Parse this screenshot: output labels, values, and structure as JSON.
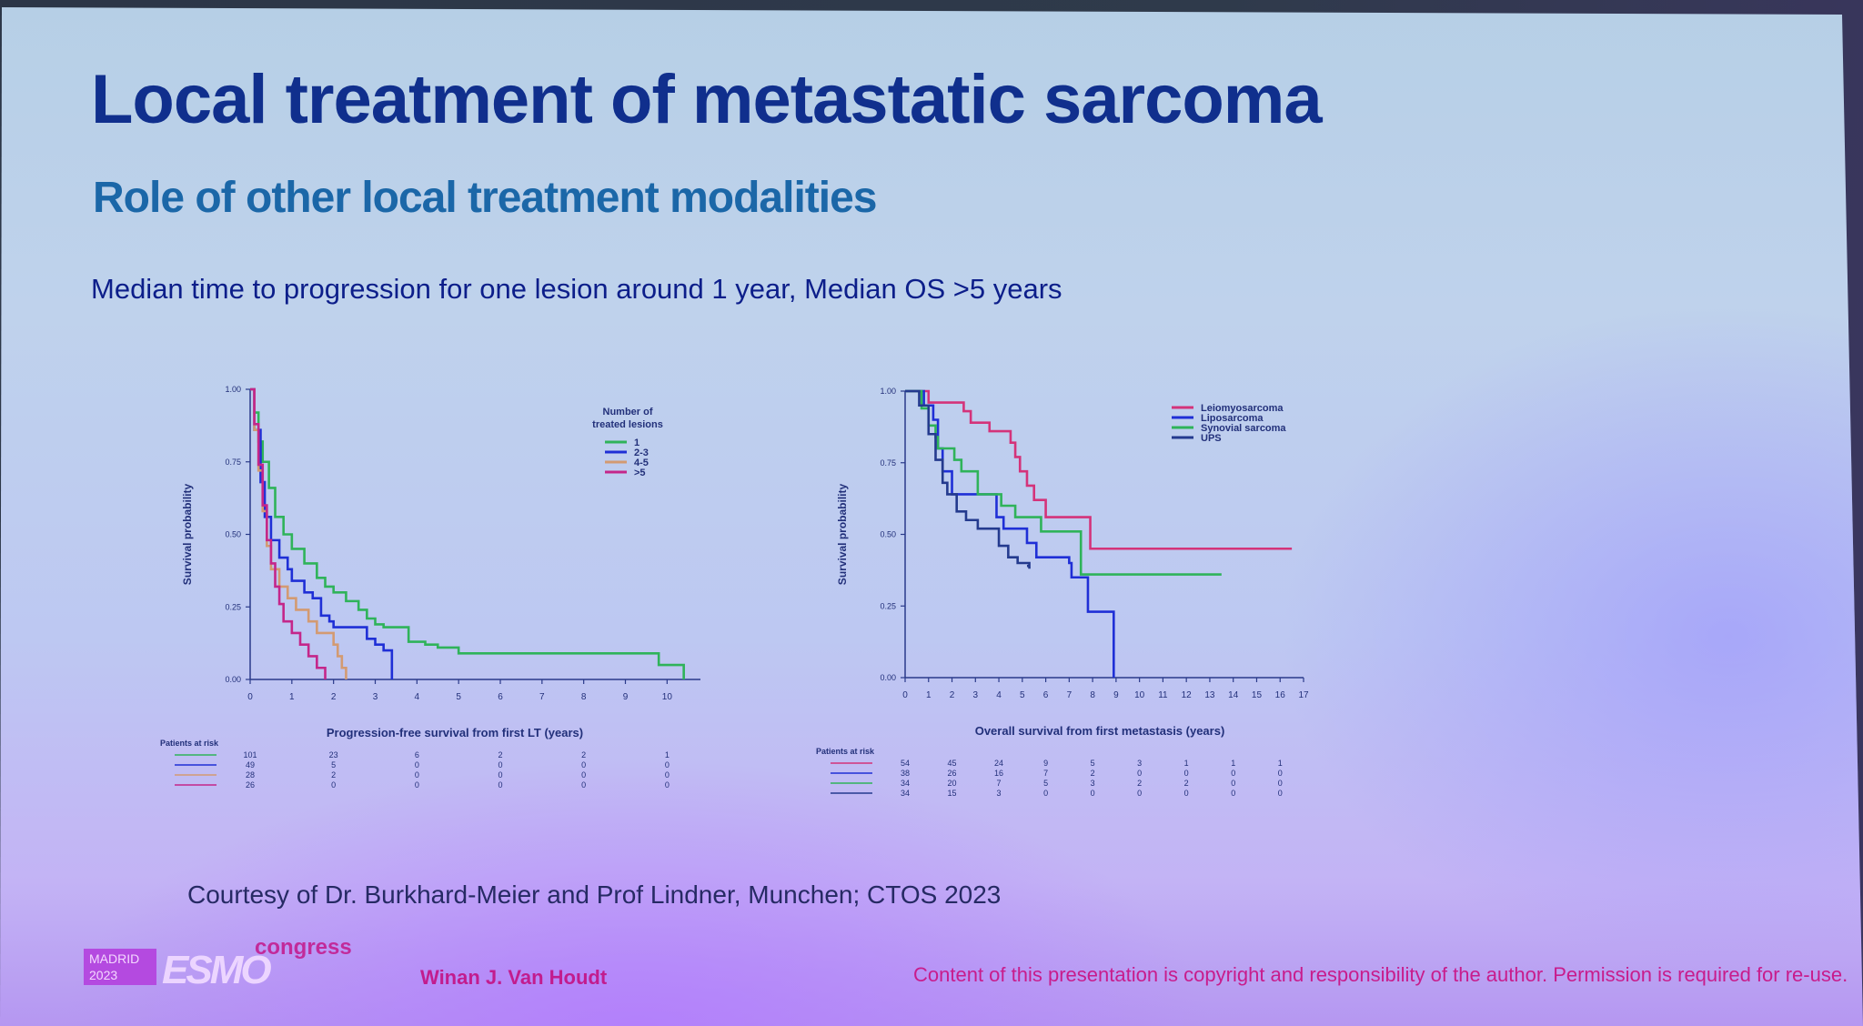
{
  "slide": {
    "title": "Local treatment of metastatic sarcoma",
    "subtitle": "Role of other local treatment modalities",
    "headline": "Median time to progression for one lesion around 1 year, Median OS >5 years",
    "courtesy": "Courtesy of Dr. Burkhard-Meier and Prof Lindner, Munchen; CTOS 2023"
  },
  "footer": {
    "author": "Winan J. Van Houdt",
    "copyright": "Content of this presentation is copyright and responsibility of the author. Permission is required for re-use.",
    "logo_city": "MADRID",
    "logo_year": "2023",
    "logo_brand": "ESMO",
    "logo_suffix": "congress"
  },
  "colors": {
    "title": "#102f8d",
    "subtitle": "#1b67a8",
    "green": "#2fb35a",
    "blue": "#1f2fd6",
    "orange": "#d39a72",
    "magenta": "#c4268a",
    "navy": "#243a8e",
    "pink": "#d4337a"
  },
  "chart_data": [
    {
      "type": "line",
      "step": true,
      "ylabel": "Survival probability",
      "xlabel": "Progression-free survival from first LT (years)",
      "xlim": [
        0,
        10.8
      ],
      "ylim": [
        0,
        1
      ],
      "x_ticks": [
        "0",
        "1",
        "2",
        "3",
        "4",
        "5",
        "6",
        "7",
        "8",
        "9",
        "10"
      ],
      "y_ticks": [
        "0.00",
        "0.25",
        "0.50",
        "0.75",
        "1.00"
      ],
      "legend_title": "Number of treated lesions",
      "legend_position": "top-right",
      "series": [
        {
          "name": "1",
          "color": "#2fb35a",
          "points": [
            [
              0,
              1
            ],
            [
              0.1,
              0.92
            ],
            [
              0.2,
              0.82
            ],
            [
              0.3,
              0.75
            ],
            [
              0.45,
              0.66
            ],
            [
              0.6,
              0.56
            ],
            [
              0.8,
              0.5
            ],
            [
              1.0,
              0.45
            ],
            [
              1.3,
              0.4
            ],
            [
              1.6,
              0.35
            ],
            [
              1.8,
              0.32
            ],
            [
              2.0,
              0.3
            ],
            [
              2.3,
              0.27
            ],
            [
              2.6,
              0.24
            ],
            [
              2.8,
              0.21
            ],
            [
              3.0,
              0.19
            ],
            [
              3.2,
              0.18
            ],
            [
              3.8,
              0.13
            ],
            [
              4.2,
              0.12
            ],
            [
              4.5,
              0.11
            ],
            [
              5.0,
              0.09
            ],
            [
              9.8,
              0.09
            ],
            [
              9.8,
              0.05
            ],
            [
              10.4,
              0.05
            ],
            [
              10.4,
              0.0
            ]
          ]
        },
        {
          "name": "2-3",
          "color": "#1f2fd6",
          "points": [
            [
              0,
              1
            ],
            [
              0.1,
              0.86
            ],
            [
              0.25,
              0.68
            ],
            [
              0.35,
              0.56
            ],
            [
              0.5,
              0.48
            ],
            [
              0.7,
              0.42
            ],
            [
              0.9,
              0.38
            ],
            [
              1.0,
              0.34
            ],
            [
              1.3,
              0.3
            ],
            [
              1.5,
              0.28
            ],
            [
              1.7,
              0.22
            ],
            [
              1.9,
              0.2
            ],
            [
              2.0,
              0.18
            ],
            [
              2.8,
              0.18
            ],
            [
              2.8,
              0.14
            ],
            [
              3.0,
              0.12
            ],
            [
              3.2,
              0.1
            ],
            [
              3.4,
              0.07
            ],
            [
              3.4,
              0.0
            ]
          ]
        },
        {
          "name": "4-5",
          "color": "#d39a72",
          "points": [
            [
              0,
              1
            ],
            [
              0.1,
              0.86
            ],
            [
              0.2,
              0.72
            ],
            [
              0.3,
              0.58
            ],
            [
              0.4,
              0.46
            ],
            [
              0.5,
              0.38
            ],
            [
              0.7,
              0.32
            ],
            [
              0.9,
              0.28
            ],
            [
              1.1,
              0.24
            ],
            [
              1.4,
              0.2
            ],
            [
              1.6,
              0.16
            ],
            [
              2.0,
              0.12
            ],
            [
              2.1,
              0.08
            ],
            [
              2.2,
              0.04
            ],
            [
              2.3,
              0.0
            ]
          ]
        },
        {
          "name": ">5",
          "color": "#c4268a",
          "points": [
            [
              0,
              1
            ],
            [
              0.1,
              0.88
            ],
            [
              0.2,
              0.74
            ],
            [
              0.3,
              0.6
            ],
            [
              0.4,
              0.48
            ],
            [
              0.5,
              0.4
            ],
            [
              0.6,
              0.32
            ],
            [
              0.7,
              0.26
            ],
            [
              0.8,
              0.2
            ],
            [
              1.0,
              0.16
            ],
            [
              1.2,
              0.12
            ],
            [
              1.4,
              0.08
            ],
            [
              1.6,
              0.04
            ],
            [
              1.8,
              0.0
            ]
          ]
        }
      ],
      "risk_table": {
        "label": "Patients at risk",
        "x_positions": [
          0,
          2,
          4,
          6,
          8,
          10
        ],
        "rows": [
          {
            "color": "#2fb35a",
            "values": [
              "101",
              "23",
              "6",
              "2",
              "2",
              "1"
            ]
          },
          {
            "color": "#1f2fd6",
            "values": [
              "49",
              "5",
              "0",
              "0",
              "0",
              "0"
            ]
          },
          {
            "color": "#d39a72",
            "values": [
              "28",
              "2",
              "0",
              "0",
              "0",
              "0"
            ]
          },
          {
            "color": "#c4268a",
            "values": [
              "26",
              "0",
              "0",
              "0",
              "0",
              "0"
            ]
          }
        ]
      }
    },
    {
      "type": "line",
      "step": true,
      "ylabel": "Survival probability",
      "xlabel": "Overall survival from first metastasis (years)",
      "xlim": [
        0,
        17
      ],
      "ylim": [
        0,
        1
      ],
      "x_ticks": [
        "0",
        "1",
        "2",
        "3",
        "4",
        "5",
        "6",
        "7",
        "8",
        "9",
        "10",
        "11",
        "12",
        "13",
        "14",
        "15",
        "16",
        "17"
      ],
      "y_ticks": [
        "0.00",
        "0.25",
        "0.50",
        "0.75",
        "1.00"
      ],
      "legend_position": "top-right",
      "series": [
        {
          "name": "Leiomyosarcoma",
          "color": "#d4337a",
          "points": [
            [
              0,
              1
            ],
            [
              1.0,
              1
            ],
            [
              1.0,
              0.96
            ],
            [
              2.5,
              0.96
            ],
            [
              2.5,
              0.93
            ],
            [
              2.8,
              0.89
            ],
            [
              3.6,
              0.86
            ],
            [
              4.5,
              0.82
            ],
            [
              4.7,
              0.77
            ],
            [
              4.9,
              0.72
            ],
            [
              5.2,
              0.67
            ],
            [
              5.5,
              0.62
            ],
            [
              6.0,
              0.56
            ],
            [
              7.0,
              0.56
            ],
            [
              7.9,
              0.46
            ],
            [
              7.9,
              0.45
            ],
            [
              16.5,
              0.45
            ]
          ]
        },
        {
          "name": "Liposarcoma",
          "color": "#1f2fd6",
          "points": [
            [
              0,
              1
            ],
            [
              0.8,
              1
            ],
            [
              0.8,
              0.95
            ],
            [
              1.2,
              0.9
            ],
            [
              1.4,
              0.8
            ],
            [
              1.6,
              0.72
            ],
            [
              2.0,
              0.64
            ],
            [
              3.9,
              0.64
            ],
            [
              3.9,
              0.56
            ],
            [
              4.2,
              0.52
            ],
            [
              5.2,
              0.47
            ],
            [
              5.6,
              0.42
            ],
            [
              7.0,
              0.4
            ],
            [
              7.1,
              0.35
            ],
            [
              7.8,
              0.34
            ],
            [
              7.8,
              0.23
            ],
            [
              8.9,
              0.23
            ],
            [
              8.9,
              0.0
            ]
          ]
        },
        {
          "name": "Synovial sarcoma",
          "color": "#2fb35a",
          "points": [
            [
              0,
              1
            ],
            [
              0.7,
              1
            ],
            [
              0.7,
              0.94
            ],
            [
              1.0,
              0.88
            ],
            [
              1.3,
              0.84
            ],
            [
              1.4,
              0.8
            ],
            [
              2.0,
              0.8
            ],
            [
              2.1,
              0.76
            ],
            [
              2.4,
              0.72
            ],
            [
              2.9,
              0.72
            ],
            [
              3.1,
              0.64
            ],
            [
              3.8,
              0.64
            ],
            [
              4.1,
              0.6
            ],
            [
              4.7,
              0.56
            ],
            [
              5.7,
              0.56
            ],
            [
              5.8,
              0.51
            ],
            [
              7.4,
              0.51
            ],
            [
              7.5,
              0.36
            ],
            [
              13.5,
              0.36
            ]
          ]
        },
        {
          "name": "UPS",
          "color": "#243a8e",
          "points": [
            [
              0,
              1
            ],
            [
              0.6,
              1
            ],
            [
              0.6,
              0.95
            ],
            [
              1.0,
              0.85
            ],
            [
              1.3,
              0.76
            ],
            [
              1.6,
              0.68
            ],
            [
              1.8,
              0.64
            ],
            [
              2.2,
              0.58
            ],
            [
              2.6,
              0.55
            ],
            [
              3.0,
              0.55
            ],
            [
              3.1,
              0.52
            ],
            [
              3.9,
              0.52
            ],
            [
              4.0,
              0.46
            ],
            [
              4.4,
              0.42
            ],
            [
              4.8,
              0.4
            ],
            [
              5.3,
              0.38
            ],
            [
              5.3,
              0.39
            ],
            [
              5.2,
              0.39
            ]
          ]
        }
      ],
      "risk_table": {
        "label": "Patients at risk",
        "x_positions": [
          0,
          2,
          4,
          6,
          8,
          10,
          12,
          14,
          16
        ],
        "rows": [
          {
            "color": "#d4337a",
            "values": [
              "54",
              "45",
              "24",
              "9",
              "5",
              "3",
              "1",
              "1",
              "1"
            ]
          },
          {
            "color": "#1f2fd6",
            "values": [
              "38",
              "26",
              "16",
              "7",
              "2",
              "0",
              "0",
              "0",
              "0"
            ]
          },
          {
            "color": "#2fb35a",
            "values": [
              "34",
              "20",
              "7",
              "5",
              "3",
              "2",
              "2",
              "0",
              "0"
            ]
          },
          {
            "color": "#243a8e",
            "values": [
              "34",
              "15",
              "3",
              "0",
              "0",
              "0",
              "0",
              "0",
              "0"
            ]
          }
        ]
      }
    }
  ]
}
